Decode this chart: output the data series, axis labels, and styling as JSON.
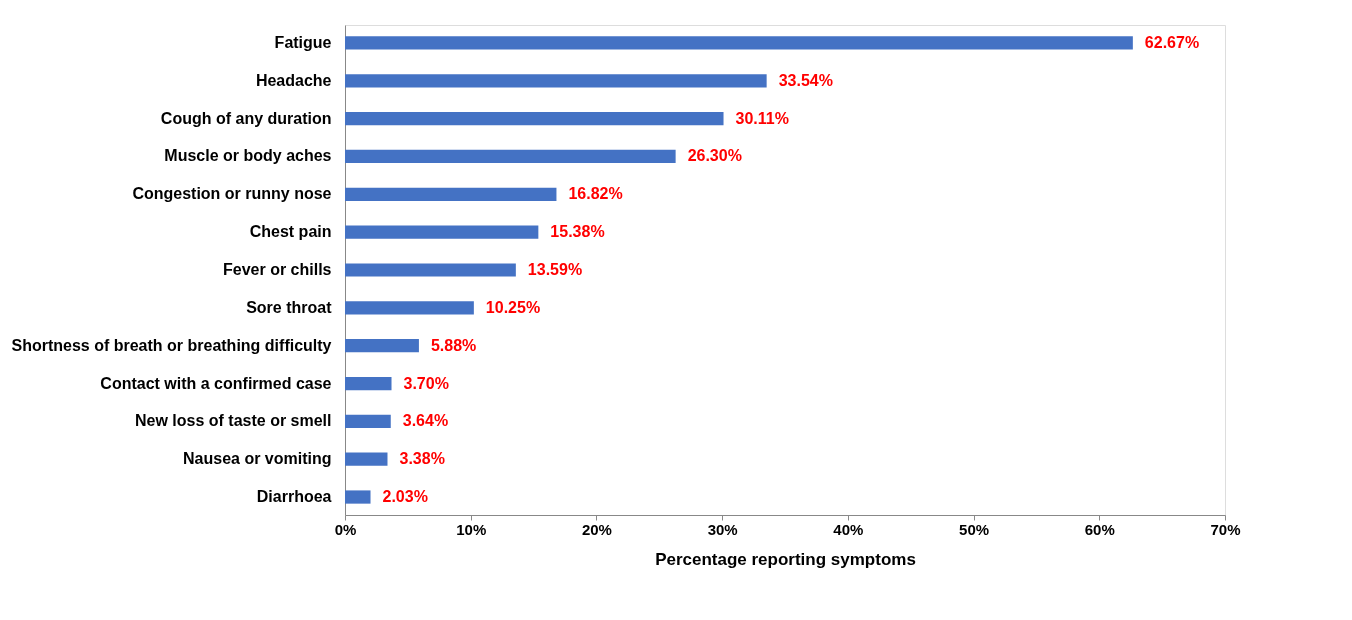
{
  "chart_data": {
    "type": "bar",
    "orientation": "horizontal",
    "xlabel": "Percentage reporting symptoms",
    "categories": [
      "Fatigue",
      "Headache",
      "Cough of any duration",
      "Muscle or body aches",
      "Congestion or runny nose",
      "Chest pain",
      "Fever or chills",
      "Sore throat",
      "Shortness of breath or breathing difficulty",
      "Contact with a confirmed case",
      "New loss of taste or smell",
      "Nausea or vomiting",
      "Diarrhoea"
    ],
    "values": [
      62.67,
      33.54,
      30.11,
      26.3,
      16.82,
      15.38,
      13.59,
      10.25,
      5.88,
      3.7,
      3.64,
      3.38,
      2.03
    ],
    "value_labels": [
      "62.67%",
      "33.54%",
      "30.11%",
      "26.30%",
      "16.82%",
      "15.38%",
      "13.59%",
      "10.25%",
      "5.88%",
      "3.70%",
      "3.64%",
      "3.38%",
      "2.03%"
    ],
    "color": "#4472c4",
    "xlim": [
      0,
      70
    ],
    "xticks": [
      {
        "value": 0,
        "label": "0%"
      },
      {
        "value": 10,
        "label": "10%"
      },
      {
        "value": 20,
        "label": "20%"
      },
      {
        "value": 30,
        "label": "30%"
      },
      {
        "value": 40,
        "label": "40%"
      },
      {
        "value": 50,
        "label": "50%"
      },
      {
        "value": 60,
        "label": "60%"
      },
      {
        "value": 70,
        "label": "70%"
      }
    ],
    "grid": false
  }
}
